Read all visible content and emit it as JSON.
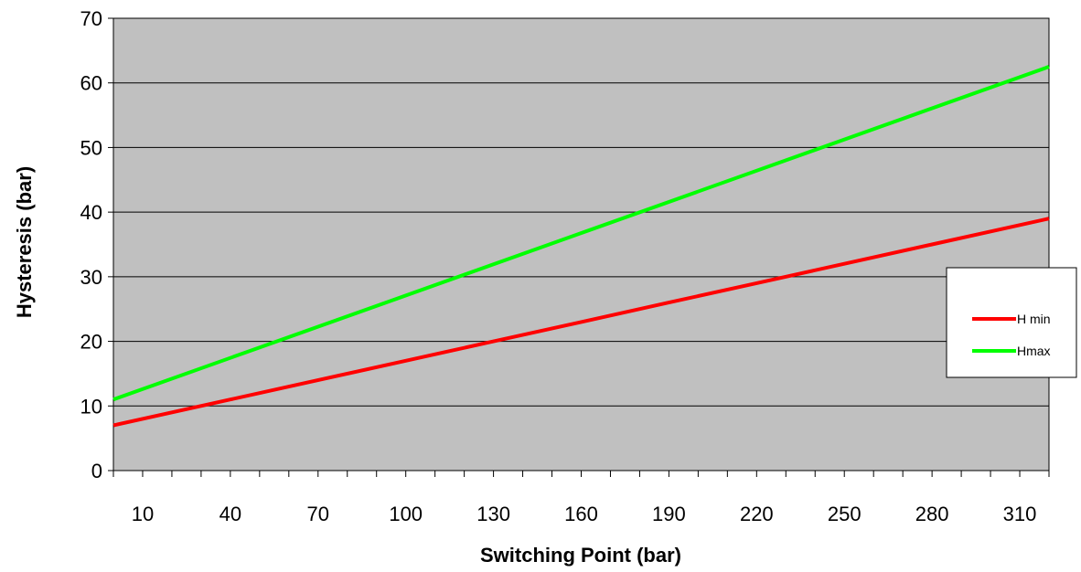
{
  "chart_data": {
    "type": "line",
    "xlabel": "Switching Point (bar)",
    "ylabel": "Hysteresis (bar)",
    "x_tick_labels": [
      "10",
      "40",
      "70",
      "100",
      "130",
      "160",
      "190",
      "220",
      "250",
      "280",
      "310"
    ],
    "y_tick_labels": [
      "0",
      "10",
      "20",
      "30",
      "40",
      "50",
      "60",
      "70"
    ],
    "ylim": [
      0,
      70
    ],
    "x_range": [
      0,
      320
    ],
    "grid": "horizontal",
    "legend_position": "right",
    "series": [
      {
        "name": "H min",
        "color": "#ff0000",
        "x": [
          0,
          40,
          100,
          130,
          160,
          190,
          220,
          250,
          280,
          310,
          320
        ],
        "y": [
          7,
          11,
          17,
          20,
          23,
          26,
          29,
          32,
          35,
          38,
          39
        ]
      },
      {
        "name": "Hmax",
        "color": "#00ff00",
        "x": [
          0,
          320
        ],
        "y": [
          11,
          62.5
        ]
      }
    ],
    "colors": {
      "plot_background": "#c0c0c0",
      "gridline": "#000000"
    }
  }
}
